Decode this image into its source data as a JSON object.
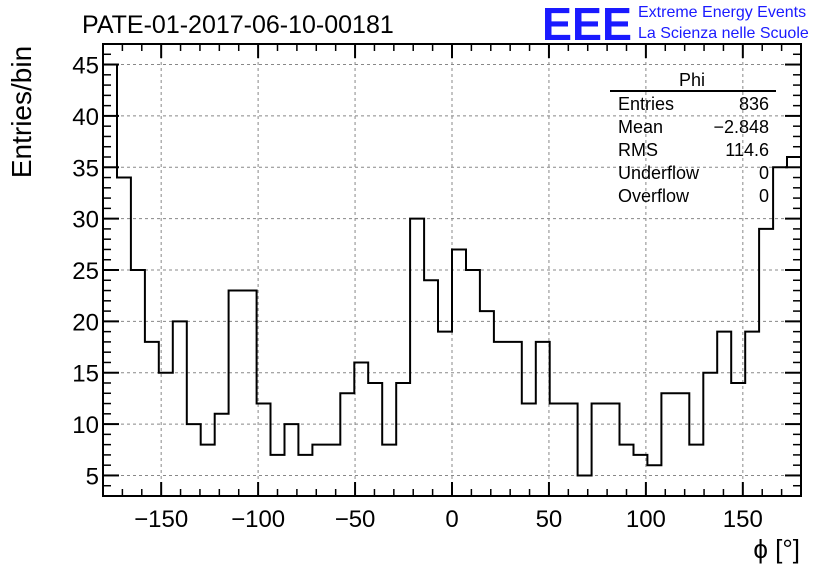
{
  "chart_data": {
    "type": "bar",
    "title": "PATE-01-2017-06-10-00181",
    "xlabel": "ϕ [°]",
    "ylabel": "Entries/bin",
    "xlim": [
      -180,
      180
    ],
    "ylim": [
      3,
      47
    ],
    "grid": true,
    "x_ticks": [
      "−150",
      "−100",
      "−50",
      "0",
      "50",
      "100",
      "150"
    ],
    "y_ticks": [
      "5",
      "10",
      "15",
      "20",
      "25",
      "30",
      "35",
      "40",
      "45"
    ],
    "bin_edges_start": -180,
    "bin_width": 7.2,
    "values": [
      45,
      34,
      25,
      18,
      15,
      20,
      10,
      8,
      11,
      23,
      23,
      12,
      7,
      10,
      7,
      8,
      8,
      13,
      16,
      14,
      8,
      14,
      30,
      24,
      19,
      27,
      25,
      21,
      18,
      18,
      12,
      18,
      12,
      12,
      5,
      12,
      12,
      8,
      7,
      6,
      13,
      13,
      8,
      15,
      19,
      14,
      19,
      29,
      35,
      36
    ],
    "stats_box": {
      "title": "Phi",
      "rows": [
        {
          "label": "Entries",
          "value": "836"
        },
        {
          "label": "Mean",
          "value": "−2.848"
        },
        {
          "label": "RMS",
          "value": "114.6"
        },
        {
          "label": "Underflow",
          "value": "0"
        },
        {
          "label": "Overflow",
          "value": "0"
        }
      ]
    }
  },
  "logo": {
    "text": "EEE",
    "line1": "Extreme Energy Events",
    "line2": "La Scienza nelle Scuole",
    "color": "#1a1aff"
  }
}
